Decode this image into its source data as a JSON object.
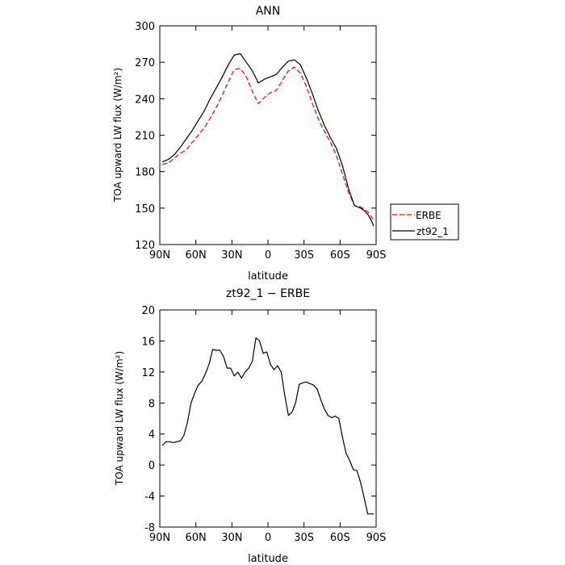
{
  "chart_data": [
    {
      "type": "line",
      "title": "ANN",
      "xlabel": "latitude",
      "ylabel": "TOA upward LW flux (W/m²)",
      "xlim": [
        90,
        -90
      ],
      "ylim": [
        120,
        300
      ],
      "xtick_values": [
        90,
        60,
        30,
        0,
        -30,
        -60,
        -90
      ],
      "xtick_labels": [
        "90N",
        "60N",
        "30N",
        "0",
        "30S",
        "60S",
        "90S"
      ],
      "ytick_values": [
        120,
        150,
        180,
        210,
        240,
        270,
        300
      ],
      "ytick_labels": [
        "120",
        "150",
        "180",
        "210",
        "240",
        "270",
        "300"
      ],
      "grid": false,
      "legend_position": "right",
      "series": [
        {
          "name": "ERBE",
          "color": "#ff0000",
          "dash": "dashed",
          "x": [
            88,
            83,
            78,
            73,
            68,
            63,
            58,
            53,
            48,
            43,
            38,
            33,
            28,
            23,
            18,
            13,
            8,
            3,
            -2,
            -7,
            -12,
            -17,
            -22,
            -27,
            -32,
            -37,
            -42,
            -47,
            -52,
            -57,
            -62,
            -67,
            -72,
            -77,
            -80,
            -83,
            -86,
            -88
          ],
          "y": [
            186,
            187,
            191,
            195,
            198,
            204,
            210,
            216,
            224,
            233,
            243,
            254,
            264,
            265,
            258,
            246,
            236,
            241,
            245,
            247,
            255,
            263,
            266,
            261,
            250,
            236,
            223,
            213,
            204,
            193,
            178,
            163,
            152,
            151,
            149,
            147,
            143,
            140
          ]
        },
        {
          "name": "zt92_1",
          "color": "#000000",
          "dash": "solid",
          "x": [
            88,
            83,
            78,
            73,
            68,
            63,
            58,
            53,
            48,
            43,
            38,
            33,
            28,
            23,
            18,
            13,
            8,
            3,
            -2,
            -7,
            -12,
            -17,
            -22,
            -27,
            -32,
            -37,
            -42,
            -47,
            -52,
            -57,
            -62,
            -67,
            -72,
            -77,
            -80,
            -83,
            -86,
            -88
          ],
          "y": [
            188,
            190,
            194,
            200,
            207,
            214,
            222,
            230,
            240,
            249,
            258,
            268,
            276,
            277,
            270,
            263,
            253,
            256,
            258,
            260,
            266,
            271,
            272,
            268,
            257,
            244,
            230,
            218,
            208,
            199,
            185,
            166,
            152,
            150,
            148,
            145,
            140,
            135
          ]
        }
      ]
    },
    {
      "type": "line",
      "title": "zt92_1 − ERBE",
      "xlabel": "latitude",
      "ylabel": "TOA upward LW flux (W/m²)",
      "xlim": [
        90,
        -90
      ],
      "ylim": [
        -8,
        20
      ],
      "xtick_values": [
        90,
        60,
        30,
        0,
        -30,
        -60,
        -90
      ],
      "xtick_labels": [
        "90N",
        "60N",
        "30N",
        "0",
        "30S",
        "60S",
        "90S"
      ],
      "ytick_values": [
        -8,
        -4,
        0,
        4,
        8,
        12,
        16,
        20
      ],
      "ytick_labels": [
        "-8",
        "-4",
        "0",
        "4",
        "8",
        "12",
        "16",
        "20"
      ],
      "grid": false,
      "series": [
        {
          "color": "#000000",
          "dash": "solid",
          "x": [
            88,
            85,
            82,
            79,
            76,
            73,
            70,
            67,
            64,
            61,
            58,
            55,
            52,
            49,
            46,
            43,
            40,
            37,
            34,
            31,
            28,
            25,
            22,
            19,
            16,
            13,
            10,
            7,
            4,
            1,
            -2,
            -5,
            -8,
            -11,
            -14,
            -17,
            -20,
            -23,
            -26,
            -29,
            -32,
            -35,
            -38,
            -41,
            -44,
            -47,
            -50,
            -53,
            -56,
            -59,
            -62,
            -65,
            -68,
            -71,
            -74,
            -77,
            -80,
            -83,
            -86,
            -88
          ],
          "y": [
            2.5,
            3.0,
            3.0,
            2.9,
            3.0,
            3.1,
            3.8,
            5.5,
            8.0,
            9.3,
            10.3,
            10.8,
            11.8,
            13.0,
            14.9,
            14.8,
            14.8,
            14.0,
            12.5,
            12.5,
            11.5,
            12.0,
            11.2,
            12.0,
            12.5,
            13.4,
            16.4,
            16.0,
            14.4,
            14.6,
            13.0,
            12.3,
            12.8,
            12.0,
            9.0,
            6.4,
            6.8,
            8.0,
            10.4,
            10.6,
            10.7,
            10.5,
            10.3,
            9.8,
            8.4,
            7.2,
            6.4,
            6.1,
            6.3,
            6.0,
            3.6,
            1.5,
            0.6,
            -0.6,
            -0.7,
            -2.2,
            -4.2,
            -6.3,
            -6.3,
            -6.3
          ]
        }
      ]
    }
  ]
}
